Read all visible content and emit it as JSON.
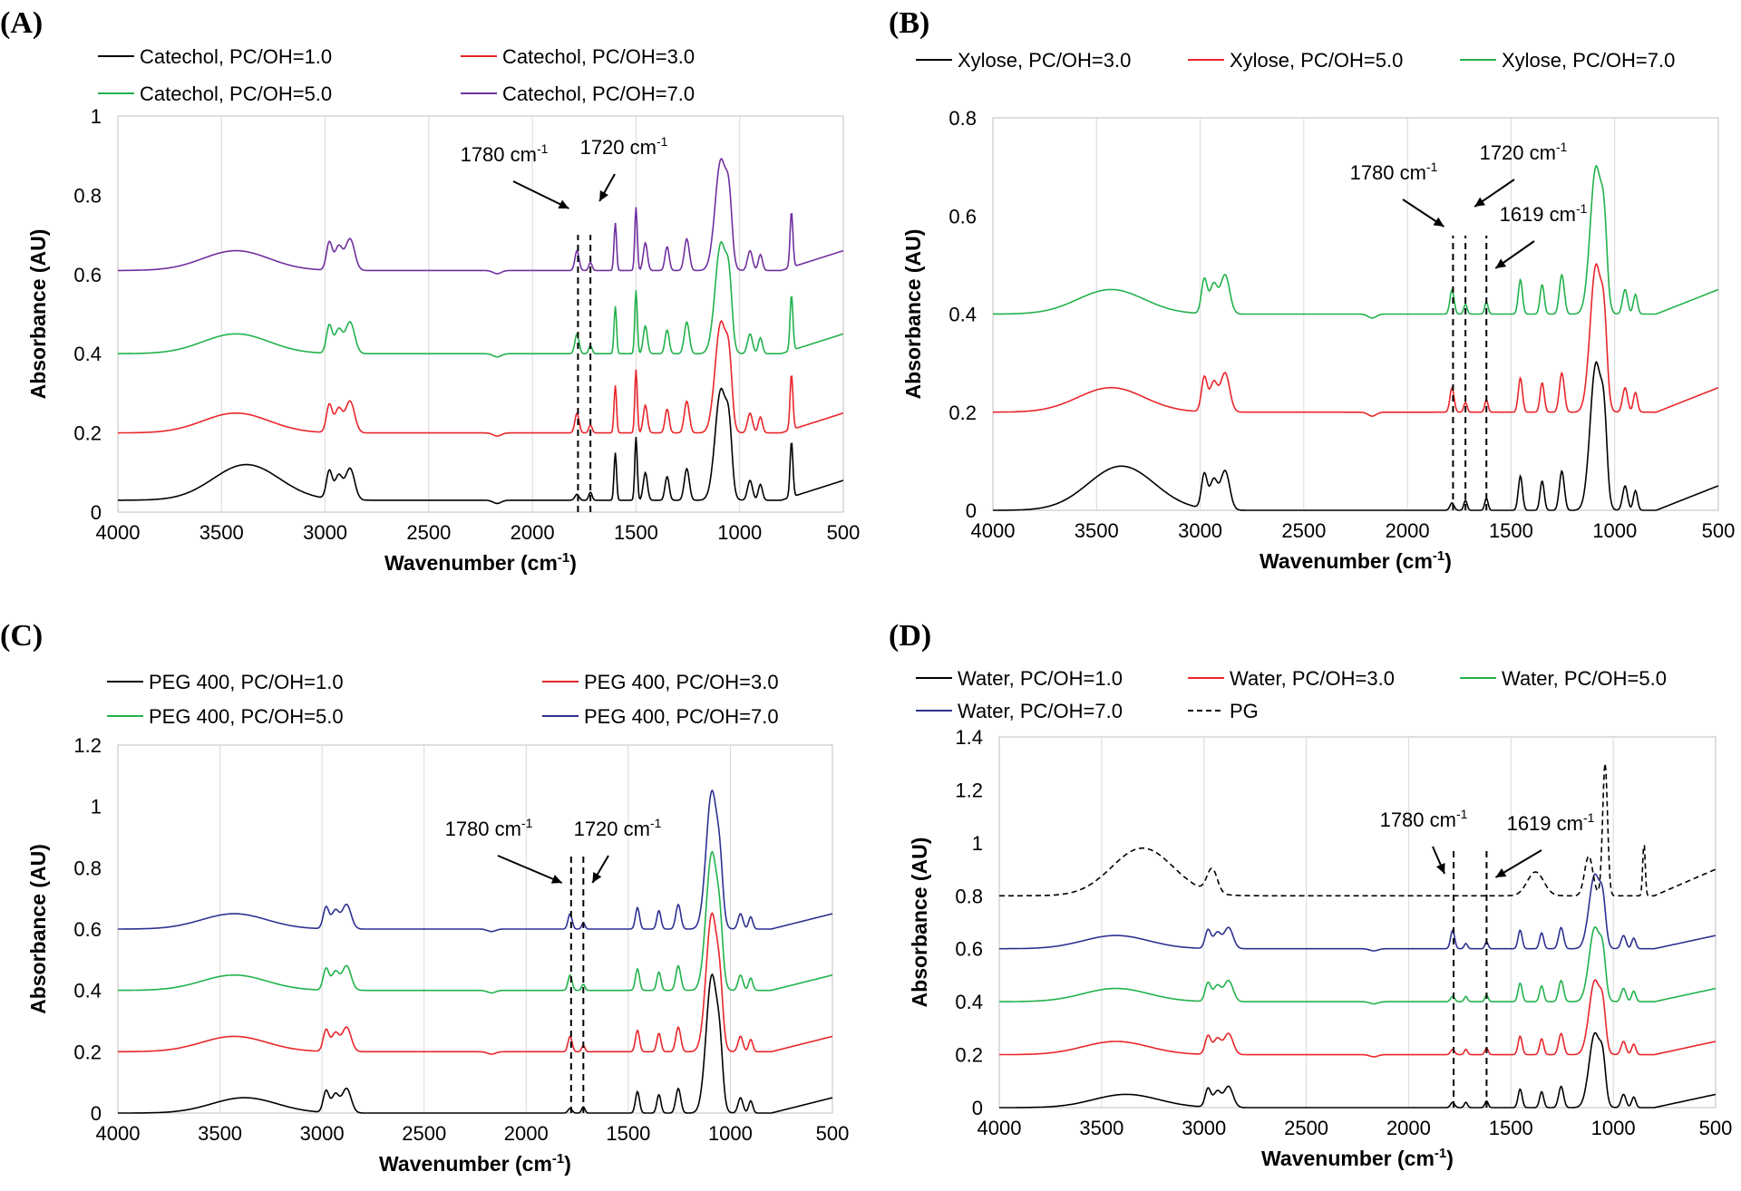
{
  "chart_data": [
    {
      "panel": "(A)",
      "type": "line",
      "xlabel": "Wavenumber (cm",
      "xlabel_sup": "-1",
      "xlabel_close": ")",
      "ylabel": "Absorbance  (AU)",
      "xlim": [
        4000,
        500
      ],
      "ylim": [
        0,
        1
      ],
      "xticks": [
        "4000",
        "3500",
        "3000",
        "2500",
        "2000",
        "1500",
        "1000",
        "500"
      ],
      "yticks": [
        "0",
        "0.2",
        "0.4",
        "0.6",
        "0.8",
        "1"
      ],
      "legend_cols": 2,
      "series": [
        {
          "name": "Catechol, PC/OH=1.0",
          "color": "#000000",
          "baseline": 0.03
        },
        {
          "name": "Catechol, PC/OH=3.0",
          "color": "#e8262b",
          "baseline": 0.2
        },
        {
          "name": "Catechol, PC/OH=5.0",
          "color": "#22b24c",
          "baseline": 0.4
        },
        {
          "name": "Catechol, PC/OH=7.0",
          "color": "#7030a0",
          "baseline": 0.61
        }
      ],
      "peaks": [
        {
          "x": 1780,
          "label": "1780 cm",
          "sup": "-1"
        },
        {
          "x": 1720,
          "label": "1720 cm",
          "sup": "-1"
        }
      ]
    },
    {
      "panel": "(B)",
      "type": "line",
      "xlabel": "Wavenumber (cm",
      "xlabel_sup": "-1",
      "xlabel_close": ")",
      "ylabel": "Absorbance (AU)",
      "xlim": [
        4000,
        500
      ],
      "ylim": [
        0,
        0.8
      ],
      "xticks": [
        "4000",
        "3500",
        "3000",
        "2500",
        "2000",
        "1500",
        "1000",
        "500"
      ],
      "yticks": [
        "0",
        "0.2",
        "0.4",
        "0.6",
        "0.8"
      ],
      "legend_cols": 3,
      "series": [
        {
          "name": "Xylose, PC/OH=3.0",
          "color": "#000000",
          "baseline": 0.0
        },
        {
          "name": "Xylose, PC/OH=5.0",
          "color": "#e8262b",
          "baseline": 0.2
        },
        {
          "name": "Xylose, PC/OH=7.0",
          "color": "#22b24c",
          "baseline": 0.4
        }
      ],
      "peaks": [
        {
          "x": 1780,
          "label": "1780 cm",
          "sup": "-1"
        },
        {
          "x": 1720,
          "label": "1720 cm",
          "sup": "-1"
        },
        {
          "x": 1619,
          "label": "1619 cm",
          "sup": "-1"
        }
      ]
    },
    {
      "panel": "(C)",
      "type": "line",
      "xlabel": "Wavenumber (cm",
      "xlabel_sup": "-1",
      "xlabel_close": ")",
      "ylabel": "Absorbance (AU)",
      "xlim": [
        4000,
        500
      ],
      "ylim": [
        0,
        1.2
      ],
      "xticks": [
        "4000",
        "3500",
        "3000",
        "2500",
        "2000",
        "1500",
        "1000",
        "500"
      ],
      "yticks": [
        "0",
        "0.2",
        "0.4",
        "0.6",
        "0.8",
        "1",
        "1.2"
      ],
      "legend_cols": 2,
      "series": [
        {
          "name": "PEG 400, PC/OH=1.0",
          "color": "#000000",
          "baseline": 0.0
        },
        {
          "name": "PEG 400, PC/OH=3.0",
          "color": "#e8262b",
          "baseline": 0.2
        },
        {
          "name": "PEG 400, PC/OH=5.0",
          "color": "#22b24c",
          "baseline": 0.4
        },
        {
          "name": "PEG 400, PC/OH=7.0",
          "color": "#2e3192",
          "baseline": 0.6
        }
      ],
      "peaks": [
        {
          "x": 1780,
          "label": "1780 cm",
          "sup": "-1"
        },
        {
          "x": 1720,
          "label": "1720 cm",
          "sup": "-1"
        }
      ]
    },
    {
      "panel": "(D)",
      "type": "line",
      "xlabel": "Wavenumber (cm",
      "xlabel_sup": "-1",
      "xlabel_close": ")",
      "ylabel": "Absorbance (AU)",
      "xlim": [
        4000,
        500
      ],
      "ylim": [
        0,
        1.4
      ],
      "xticks": [
        "4000",
        "3500",
        "3000",
        "2500",
        "2000",
        "1500",
        "1000",
        "500"
      ],
      "yticks": [
        "0",
        "0.2",
        "0.4",
        "0.6",
        "0.8",
        "1",
        "1.2",
        "1.4"
      ],
      "legend_cols": 3,
      "series": [
        {
          "name": "Water, PC/OH=1.0",
          "color": "#000000",
          "baseline": 0.0
        },
        {
          "name": "Water, PC/OH=3.0",
          "color": "#e8262b",
          "baseline": 0.2
        },
        {
          "name": "Water, PC/OH=5.0",
          "color": "#22b24c",
          "baseline": 0.4
        },
        {
          "name": "Water, PC/OH=7.0",
          "color": "#2e3192",
          "baseline": 0.6
        },
        {
          "name": "PG",
          "color": "#000000",
          "baseline": 0.8,
          "dashed": true
        }
      ],
      "peaks": [
        {
          "x": 1780,
          "label": "1780 cm",
          "sup": "-1"
        },
        {
          "x": 1619,
          "label": "1619 cm",
          "sup": "-1"
        }
      ]
    }
  ]
}
